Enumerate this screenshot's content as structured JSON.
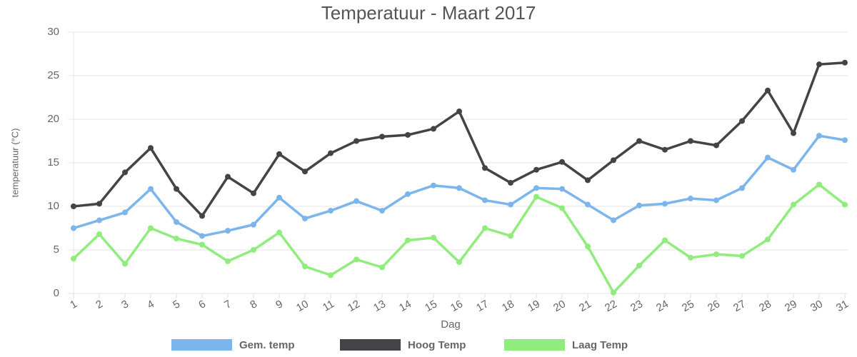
{
  "chart_data": {
    "type": "line",
    "title": "Temperatuur - Maart 2017",
    "x_label": "Dag",
    "y_label": "temperatuur (°C)",
    "categories": [
      "1",
      "2",
      "3",
      "4",
      "5",
      "6",
      "7",
      "8",
      "9",
      "10",
      "11",
      "12",
      "13",
      "14",
      "15",
      "16",
      "17",
      "18",
      "19",
      "20",
      "21",
      "22",
      "23",
      "24",
      "25",
      "26",
      "27",
      "28",
      "29",
      "30",
      "31"
    ],
    "series": [
      {
        "name": "Gem. temp",
        "color": "#7cb5ec",
        "values": [
          7.5,
          8.4,
          9.3,
          12.0,
          8.2,
          6.6,
          7.2,
          7.9,
          11.0,
          8.6,
          9.5,
          10.6,
          9.5,
          11.4,
          12.4,
          12.1,
          10.7,
          10.2,
          12.1,
          12.0,
          10.2,
          8.4,
          10.1,
          10.3,
          10.9,
          10.7,
          12.1,
          15.6,
          14.2,
          18.1,
          17.6
        ]
      },
      {
        "name": "Hoog Temp",
        "color": "#434348",
        "values": [
          10.0,
          10.3,
          13.9,
          16.7,
          12.0,
          8.9,
          13.4,
          11.5,
          16.0,
          14.0,
          16.1,
          17.5,
          18.0,
          18.2,
          18.9,
          20.9,
          14.4,
          12.7,
          14.2,
          15.1,
          13.0,
          15.3,
          17.5,
          16.5,
          17.5,
          17.0,
          19.8,
          23.3,
          18.4,
          26.3,
          26.5
        ]
      },
      {
        "name": "Laag Temp",
        "color": "#90ed7d",
        "values": [
          4.0,
          6.8,
          3.4,
          7.5,
          6.3,
          5.6,
          3.7,
          5.0,
          7.0,
          3.1,
          2.1,
          3.9,
          3.0,
          6.1,
          6.4,
          3.6,
          7.5,
          6.6,
          11.1,
          9.8,
          5.4,
          0.1,
          3.2,
          6.1,
          4.1,
          4.5,
          4.3,
          6.2,
          10.2,
          12.5,
          10.2
        ]
      }
    ],
    "ylim": [
      0,
      30
    ],
    "yticks": [
      0,
      5,
      10,
      15,
      20,
      25,
      30
    ],
    "grid": true,
    "legend": "bottom"
  }
}
